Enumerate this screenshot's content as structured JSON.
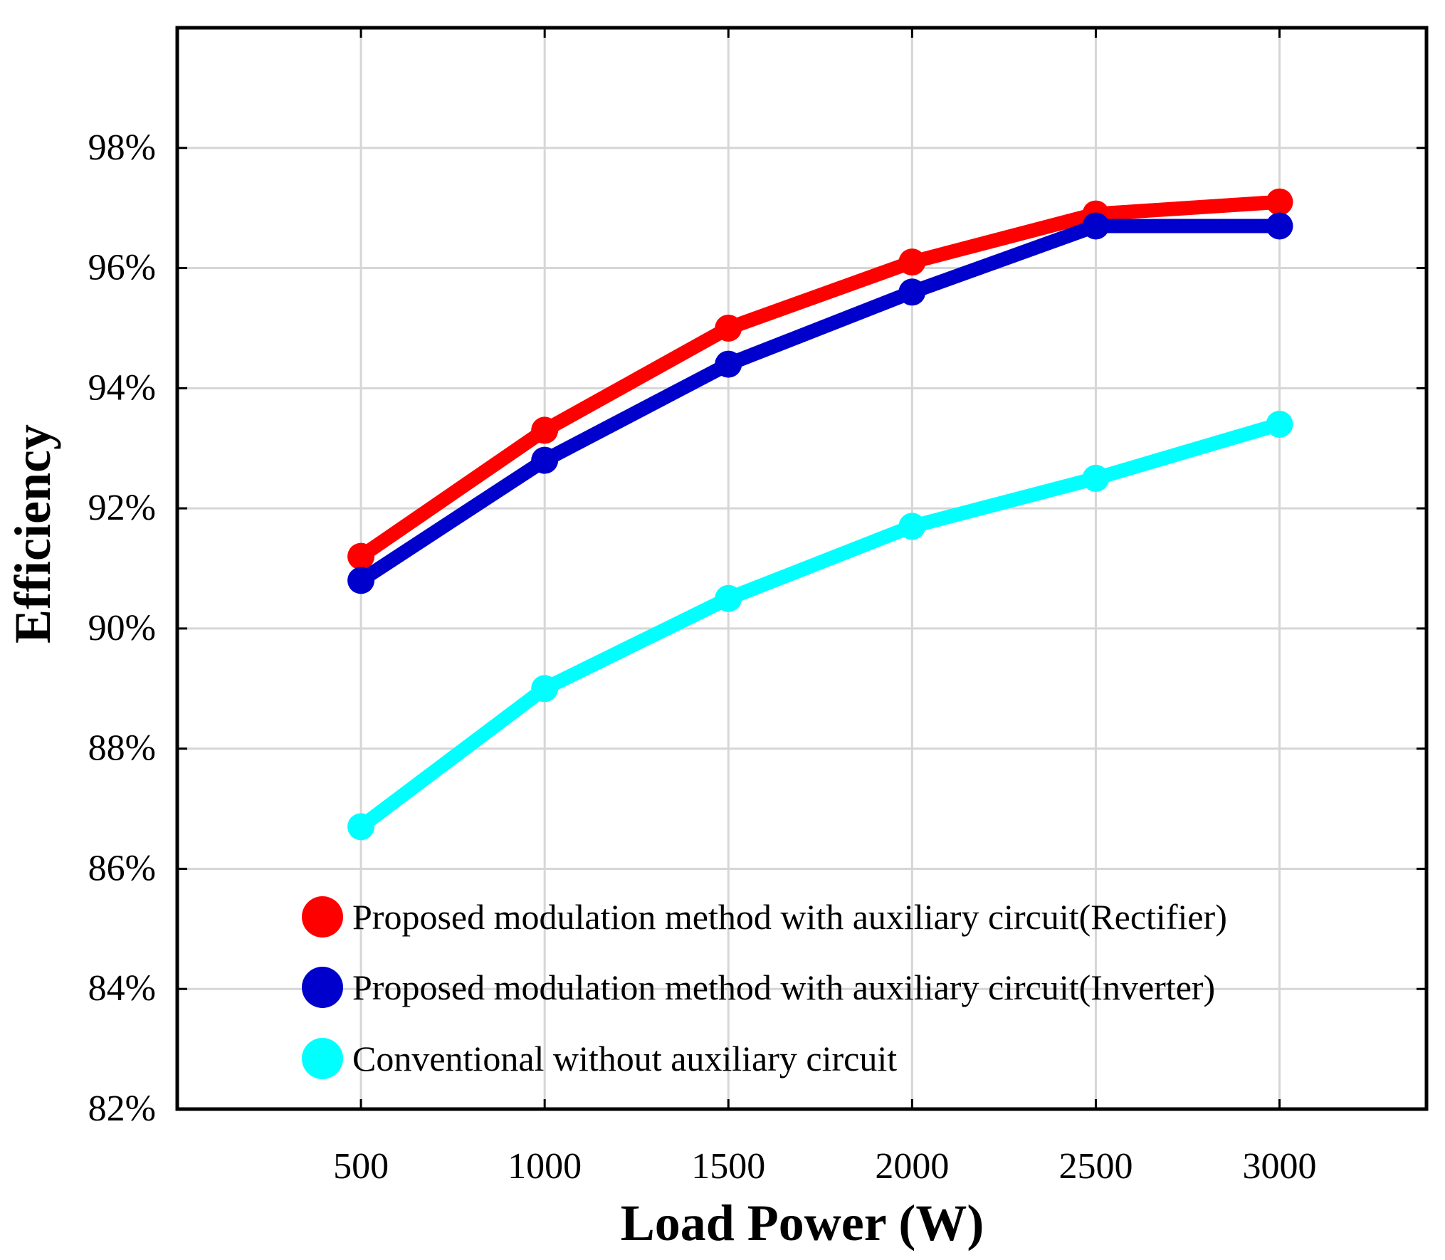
{
  "chart_data": {
    "type": "line",
    "title": "",
    "xlabel": "Load Power (W)",
    "ylabel": "Efficiency",
    "x": [
      500,
      1000,
      1500,
      2000,
      2500,
      3000
    ],
    "xticks": [
      "500",
      "1000",
      "1500",
      "2000",
      "2500",
      "3000"
    ],
    "xlim": [
      0,
      3400
    ],
    "yticks": [
      {
        "value": 82,
        "label": "82%"
      },
      {
        "value": 84,
        "label": "84%"
      },
      {
        "value": 86,
        "label": "86%"
      },
      {
        "value": 88,
        "label": "88%"
      },
      {
        "value": 90,
        "label": "90%"
      },
      {
        "value": 92,
        "label": "92%"
      },
      {
        "value": 94,
        "label": "94%"
      },
      {
        "value": 96,
        "label": "96%"
      },
      {
        "value": 98,
        "label": "98%"
      }
    ],
    "ylim": [
      82,
      100
    ],
    "grid": true,
    "legend_position": "bottom-center",
    "series": [
      {
        "name": "Proposed modulation method with auxiliary circuit(Rectifier)",
        "color": "#ff0000",
        "values": [
          91.2,
          93.3,
          95.0,
          96.1,
          96.9,
          97.1
        ]
      },
      {
        "name": "Proposed modulation method with auxiliary circuit(Inverter)",
        "color": "#0000cc",
        "values": [
          90.8,
          92.8,
          94.4,
          95.6,
          96.7,
          96.7
        ]
      },
      {
        "name": "Conventional without auxiliary circuit",
        "color": "#00ffff",
        "values": [
          86.7,
          89.0,
          90.5,
          91.7,
          92.5,
          93.4
        ]
      }
    ]
  }
}
